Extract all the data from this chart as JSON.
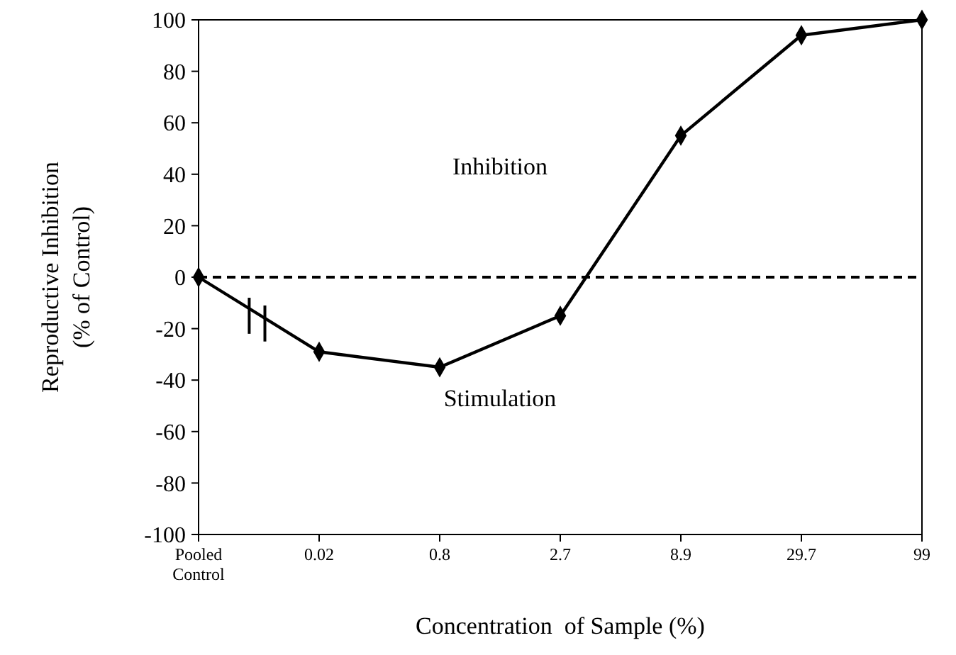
{
  "chart_data": {
    "type": "line",
    "xlabel": "Concentration  of Sample (%)",
    "ylabel": "Reproductive Inhibition (% of Control)",
    "categories": [
      "Pooled Control",
      "0.02",
      "0.8",
      "2.7",
      "8.9",
      "29.7",
      "99"
    ],
    "series": [
      {
        "color": "#000000",
        "values": [
          0,
          -29,
          -35,
          -15,
          55,
          94,
          100
        ]
      }
    ],
    "ylim": [
      -100,
      100
    ],
    "yticks": [
      -100,
      -80,
      -60,
      -40,
      -20,
      0,
      20,
      40,
      60,
      80,
      100
    ],
    "marker": "diamond",
    "line_style": "solid",
    "grid": false,
    "ref_lines": [
      {
        "axis": "y",
        "value": 0,
        "line_style": "dashed",
        "color": "#000000"
      }
    ],
    "annotations": [
      "Inhibition",
      "Stimulation"
    ]
  }
}
